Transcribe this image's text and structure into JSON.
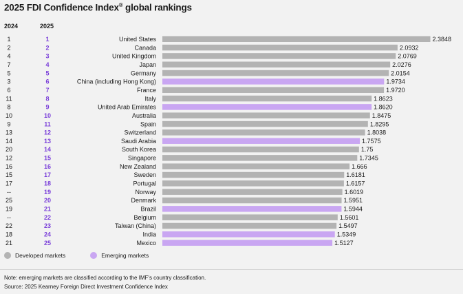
{
  "title": "2025 FDI Confidence Index",
  "title_reg": "®",
  "title_suffix": " global rankings",
  "col_2024": "2024",
  "col_2025": "2025",
  "legend": {
    "developed": "Developed markets",
    "emerging": "Emerging markets"
  },
  "colors": {
    "developed": "#b3b3b3",
    "emerging": "#c9a6f2",
    "rank2025": "#7a3fd9",
    "background": "#f2f2f2"
  },
  "note": "Note: emerging markets are classified according to the IMF's country classification.",
  "source": "Source: 2025 Kearney Foreign Direct Investment Confidence Index",
  "chart_data": {
    "type": "bar",
    "orientation": "horizontal",
    "xlim": [
      0,
      2.4
    ],
    "grid": false,
    "legend_position": "bottom-left",
    "categories": [
      "United States",
      "Canada",
      "United Kingdom",
      "Japan",
      "Germany",
      "China (including Hong Kong)",
      "France",
      "Italy",
      "United Arab Emirates",
      "Australia",
      "Spain",
      "Switzerland",
      "Saudi Arabia",
      "South Korea",
      "Singapore",
      "New Zealand",
      "Sweden",
      "Portugal",
      "Norway",
      "Denmark",
      "Brazil",
      "Belgium",
      "Taiwan (China)",
      "India",
      "Mexico"
    ],
    "values": [
      2.3848,
      2.0932,
      2.0769,
      2.0276,
      2.0154,
      1.9734,
      1.972,
      1.8623,
      1.862,
      1.8475,
      1.8295,
      1.8038,
      1.7575,
      1.75,
      1.7345,
      1.666,
      1.6181,
      1.6157,
      1.6019,
      1.5951,
      1.5944,
      1.5601,
      1.5497,
      1.5349,
      1.5127
    ],
    "value_labels": [
      "2.3848",
      "2.0932",
      "2.0769",
      "2.0276",
      "2.0154",
      "1.9734",
      "1.9720",
      "1.8623",
      "1.8620",
      "1.8475",
      "1.8295",
      "1.8038",
      "1.7575",
      "1.75",
      "1.7345",
      "1.666",
      "1.6181",
      "1.6157",
      "1.6019",
      "1.5951",
      "1.5944",
      "1.5601",
      "1.5497",
      "1.5349",
      "1.5127"
    ],
    "rank_2024": [
      "1",
      "2",
      "4",
      "7",
      "5",
      "3",
      "6",
      "11",
      "8",
      "10",
      "9",
      "13",
      "14",
      "20",
      "12",
      "16",
      "15",
      "17",
      "--",
      "25",
      "19",
      "--",
      "22",
      "18",
      "21"
    ],
    "rank_2025": [
      "1",
      "2",
      "3",
      "4",
      "5",
      "6",
      "7",
      "8",
      "9",
      "10",
      "11",
      "12",
      "13",
      "14",
      "15",
      "16",
      "17",
      "18",
      "19",
      "20",
      "21",
      "22",
      "23",
      "24",
      "25"
    ],
    "market": [
      "developed",
      "developed",
      "developed",
      "developed",
      "developed",
      "emerging",
      "developed",
      "developed",
      "emerging",
      "developed",
      "developed",
      "developed",
      "emerging",
      "developed",
      "developed",
      "developed",
      "developed",
      "developed",
      "developed",
      "developed",
      "emerging",
      "developed",
      "developed",
      "emerging",
      "emerging"
    ]
  }
}
